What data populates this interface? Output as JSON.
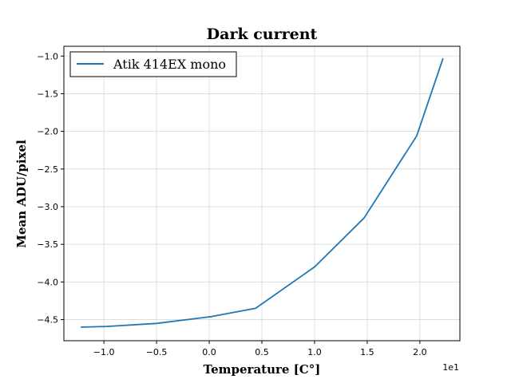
{
  "chart_data": {
    "type": "line",
    "title": "Dark current",
    "xlabel": "Temperature [C°]",
    "ylabel": "Mean ADU/pixel",
    "x_offset_text": "1e1",
    "xlim": [
      -1.38,
      2.38
    ],
    "ylim": [
      -4.78,
      -0.87
    ],
    "xticks": [
      -1.0,
      -0.5,
      0.0,
      0.5,
      1.0,
      1.5,
      2.0
    ],
    "xtick_labels": [
      "−1.0",
      "−0.5",
      "0.0",
      "0.5",
      "1.0",
      "1.5",
      "2.0"
    ],
    "yticks": [
      -4.5,
      -4.0,
      -3.5,
      -3.0,
      -2.5,
      -2.0,
      -1.5,
      -1.0
    ],
    "ytick_labels": [
      "−4.5",
      "−4.0",
      "−3.5",
      "−3.0",
      "−2.5",
      "−2.0",
      "−1.5",
      "−1.0"
    ],
    "grid": true,
    "legend_position": "top-left",
    "series": [
      {
        "name": "Atik 414EX mono",
        "color": "#1f77b4",
        "x": [
          -1.22,
          -0.97,
          -0.5,
          0.02,
          0.44,
          1.0,
          1.47,
          1.97,
          2.22
        ],
        "y": [
          -4.6,
          -4.59,
          -4.55,
          -4.46,
          -4.35,
          -3.8,
          -3.15,
          -2.06,
          -1.03
        ]
      }
    ]
  }
}
